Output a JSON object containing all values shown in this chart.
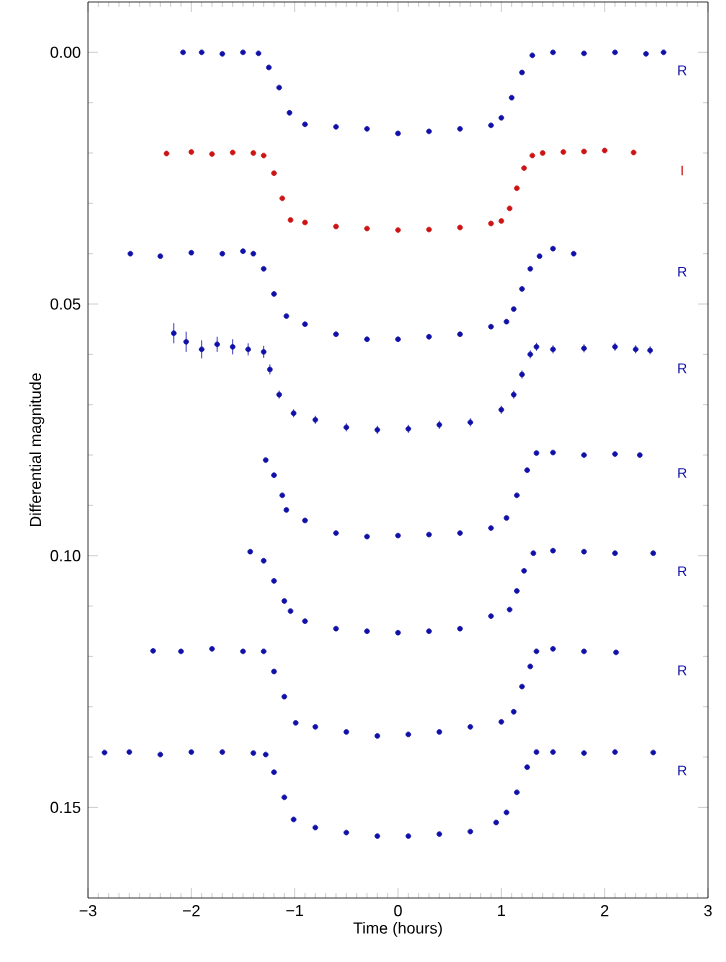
{
  "chart_data": {
    "type": "scatter",
    "xlabel": "Time (hours)",
    "ylabel": "Differential magnitude",
    "xlim": [
      -3,
      3
    ],
    "ylim": [
      0.168,
      -0.01
    ],
    "xticks": [
      {
        "value": -3,
        "label": "−3"
      },
      {
        "value": -2,
        "label": "−2"
      },
      {
        "value": -1,
        "label": "−1"
      },
      0,
      1,
      2,
      3
    ],
    "yticks": [
      {
        "value": 0,
        "label": "0.00"
      },
      {
        "value": 0.05,
        "label": "0.05"
      },
      {
        "value": 0.1,
        "label": "0.10"
      },
      {
        "value": 0.15,
        "label": "0.15"
      }
    ],
    "marker": "circle",
    "legend": false,
    "grid": false,
    "series": [
      {
        "name": "R",
        "color": "#1010a8",
        "x": [
          -2.08,
          -1.9,
          -1.7,
          -1.5,
          -1.35,
          -1.25,
          -1.15,
          -1.05,
          -0.9,
          -0.6,
          -0.3,
          0,
          0.3,
          0.6,
          0.9,
          1.0,
          1.1,
          1.2,
          1.3,
          1.5,
          1.8,
          2.1,
          2.4,
          2.57
        ],
        "values": [
          0.0,
          0.0,
          0.0003,
          0.0,
          0.0002,
          0.003,
          0.007,
          0.012,
          0.0143,
          0.0148,
          0.0152,
          0.0161,
          0.0157,
          0.0152,
          0.0145,
          0.013,
          0.009,
          0.004,
          0.0006,
          0.0,
          0.0002,
          0.0,
          0.0003,
          0.0
        ]
      },
      {
        "name": "I",
        "color": "#cc1414",
        "x": [
          -2.24,
          -2.0,
          -1.8,
          -1.6,
          -1.4,
          -1.3,
          -1.2,
          -1.12,
          -1.04,
          -0.9,
          -0.6,
          -0.3,
          0,
          0.3,
          0.6,
          0.9,
          1.0,
          1.08,
          1.15,
          1.22,
          1.3,
          1.4,
          1.6,
          1.8,
          2.0,
          2.28
        ],
        "values": [
          0.0201,
          0.0198,
          0.0202,
          0.0199,
          0.02,
          0.0205,
          0.024,
          0.029,
          0.0333,
          0.0338,
          0.0346,
          0.035,
          0.0353,
          0.0352,
          0.0348,
          0.034,
          0.0335,
          0.031,
          0.027,
          0.023,
          0.0205,
          0.02,
          0.0198,
          0.0197,
          0.0195,
          0.0199
        ]
      },
      {
        "name": "R",
        "color": "#1010a8",
        "x": [
          -2.59,
          -2.3,
          -2.0,
          -1.7,
          -1.5,
          -1.4,
          -1.3,
          -1.2,
          -1.08,
          -0.9,
          -0.6,
          -0.3,
          0,
          0.3,
          0.6,
          0.9,
          1.05,
          1.12,
          1.2,
          1.28,
          1.37,
          1.5,
          1.7
        ],
        "values": [
          0.04,
          0.0405,
          0.0398,
          0.04,
          0.0395,
          0.04,
          0.043,
          0.048,
          0.0524,
          0.054,
          0.056,
          0.057,
          0.057,
          0.0565,
          0.056,
          0.0545,
          0.0535,
          0.051,
          0.047,
          0.043,
          0.0405,
          0.039,
          0.04
        ]
      },
      {
        "name": "R",
        "color": "#1010a8",
        "x": [
          -2.17,
          -2.05,
          -1.9,
          -1.75,
          -1.6,
          -1.45,
          -1.3,
          -1.24,
          -1.15,
          -1.01,
          -0.8,
          -0.5,
          -0.2,
          0.1,
          0.4,
          0.7,
          1.0,
          1.12,
          1.2,
          1.28,
          1.34,
          1.5,
          1.8,
          2.1,
          2.3,
          2.44
        ],
        "values": [
          0.0558,
          0.0575,
          0.059,
          0.058,
          0.0585,
          0.059,
          0.0595,
          0.063,
          0.068,
          0.0717,
          0.073,
          0.0745,
          0.075,
          0.0748,
          0.074,
          0.0735,
          0.071,
          0.068,
          0.064,
          0.06,
          0.0585,
          0.059,
          0.0588,
          0.0585,
          0.059,
          0.0592
        ],
        "errors": [
          0.002,
          0.002,
          0.0018,
          0.0015,
          0.0015,
          0.0012,
          0.0012,
          0.001,
          0.0008,
          0.0008,
          0.0008,
          0.0008,
          0.0008,
          0.0008,
          0.0008,
          0.0008,
          0.0008,
          0.0008,
          0.0008,
          0.0008,
          0.0008,
          0.0008,
          0.0008,
          0.0008,
          0.0008,
          0.0008
        ]
      },
      {
        "name": "R",
        "color": "#1010a8",
        "x": [
          -1.28,
          -1.2,
          -1.12,
          -1.08,
          -0.9,
          -0.6,
          -0.3,
          0,
          0.3,
          0.6,
          0.9,
          1.05,
          1.15,
          1.25,
          1.34,
          1.5,
          1.8,
          2.1,
          2.34
        ],
        "values": [
          0.081,
          0.084,
          0.088,
          0.0909,
          0.093,
          0.0955,
          0.0962,
          0.096,
          0.0958,
          0.0955,
          0.0945,
          0.0925,
          0.088,
          0.083,
          0.0796,
          0.0795,
          0.08,
          0.0798,
          0.08
        ]
      },
      {
        "name": "R",
        "color": "#1010a8",
        "x": [
          -1.43,
          -1.3,
          -1.2,
          -1.1,
          -1.04,
          -0.9,
          -0.6,
          -0.3,
          0,
          0.3,
          0.6,
          0.9,
          1.08,
          1.15,
          1.22,
          1.31,
          1.5,
          1.8,
          2.1,
          2.47
        ],
        "values": [
          0.0992,
          0.101,
          0.105,
          0.109,
          0.111,
          0.113,
          0.1145,
          0.115,
          0.1153,
          0.115,
          0.1145,
          0.112,
          0.1107,
          0.107,
          0.103,
          0.0995,
          0.099,
          0.0992,
          0.0995,
          0.0995
        ]
      },
      {
        "name": "R",
        "color": "#1010a8",
        "x": [
          -2.37,
          -2.1,
          -1.8,
          -1.5,
          -1.3,
          -1.2,
          -1.1,
          -0.99,
          -0.8,
          -0.5,
          -0.2,
          0.1,
          0.4,
          0.7,
          1.0,
          1.12,
          1.2,
          1.28,
          1.34,
          1.5,
          1.8,
          2.11
        ],
        "values": [
          0.1189,
          0.119,
          0.1185,
          0.119,
          0.119,
          0.123,
          0.128,
          0.1332,
          0.134,
          0.135,
          0.1358,
          0.1355,
          0.135,
          0.134,
          0.133,
          0.131,
          0.126,
          0.122,
          0.119,
          0.1185,
          0.119,
          0.1192
        ]
      },
      {
        "name": "R",
        "color": "#1010a8",
        "x": [
          -2.84,
          -2.6,
          -2.3,
          -2.0,
          -1.7,
          -1.4,
          -1.28,
          -1.2,
          -1.1,
          -1.01,
          -0.8,
          -0.5,
          -0.2,
          0.1,
          0.4,
          0.7,
          0.95,
          1.05,
          1.15,
          1.25,
          1.34,
          1.5,
          1.8,
          2.1,
          2.47
        ],
        "values": [
          0.1391,
          0.139,
          0.1395,
          0.139,
          0.139,
          0.1392,
          0.1395,
          0.143,
          0.148,
          0.1524,
          0.154,
          0.155,
          0.1557,
          0.1557,
          0.1553,
          0.1548,
          0.153,
          0.151,
          0.147,
          0.142,
          0.139,
          0.139,
          0.1392,
          0.139,
          0.1391
        ]
      }
    ]
  }
}
